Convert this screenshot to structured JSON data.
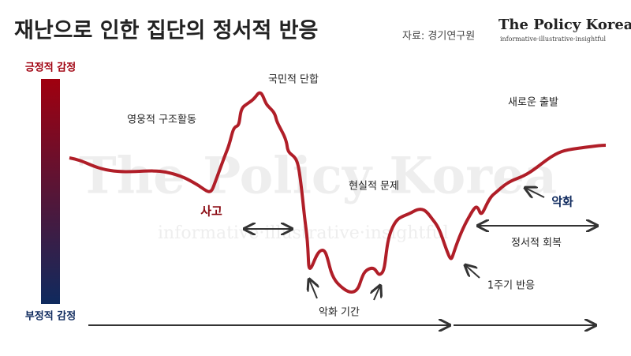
{
  "header": {
    "title": "재난으로 인한 집단의 정서적 반응",
    "source": "자료: 경기연구원"
  },
  "logo": {
    "name": "The Policy Korea",
    "tagline": "informative·illustrative·insightful"
  },
  "scale": {
    "top": "긍정적 감정",
    "bottom": "부정적 감정"
  },
  "labels": {
    "heroic": "영웅적 구조활동",
    "unity": "국민적 단합",
    "accident": "사고",
    "reality": "현실적 문제",
    "worsening_period": "악화 기간",
    "anniversary": "1주기 반응",
    "new_start": "새로운 출발",
    "worsening": "악화",
    "recovery": "정서적 회복"
  }
}
